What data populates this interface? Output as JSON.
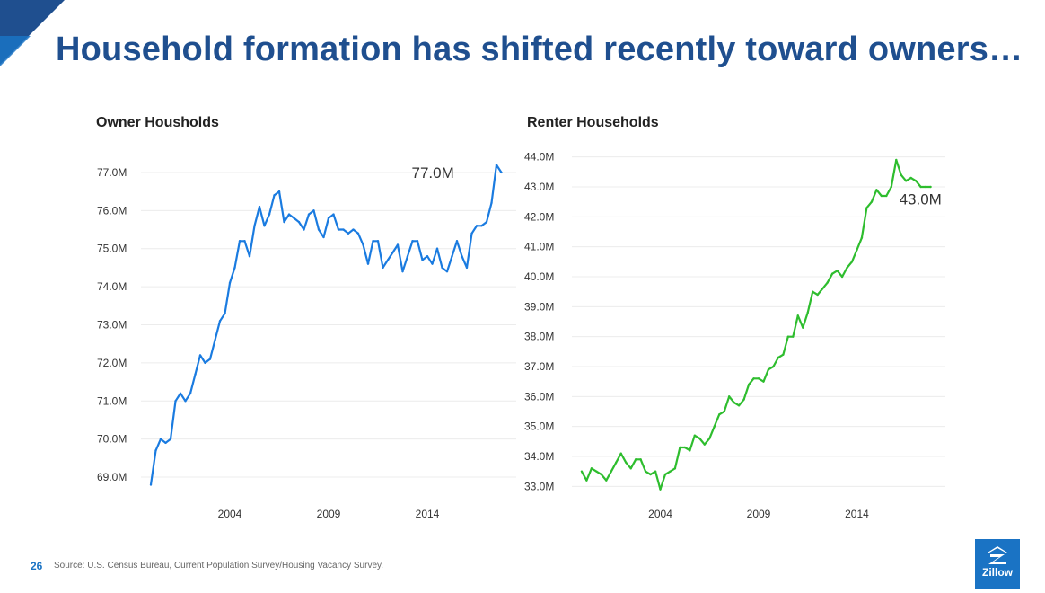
{
  "slide": {
    "title": "Household formation has shifted recently toward owners…",
    "page_number": "26",
    "source": "Source: U.S. Census Bureau, Current Population Survey/Housing Vacancy Survey.",
    "logo_text": "Zillow",
    "colors": {
      "title": "#1f4f8f",
      "accent": "#1a73c4",
      "owner_line": "#1a7be0",
      "renter_line": "#2ebd2e"
    }
  },
  "chart_data": [
    {
      "type": "line",
      "title": "Owner Housholds",
      "xlabel": "",
      "ylabel": "",
      "x_ticks": [
        "2004",
        "2009",
        "2014"
      ],
      "y_ticks": [
        "69.0M",
        "70.0M",
        "71.0M",
        "72.0M",
        "73.0M",
        "74.0M",
        "75.0M",
        "76.0M",
        "77.0M"
      ],
      "ylim": [
        68.6,
        77.4
      ],
      "xlim": [
        1999.5,
        2018.5
      ],
      "grid": true,
      "end_label": "77.0M",
      "series": [
        {
          "values": [
            [
              2000.0,
              68.8
            ],
            [
              2000.25,
              69.7
            ],
            [
              2000.5,
              70.0
            ],
            [
              2000.75,
              69.9
            ],
            [
              2001.0,
              70.0
            ],
            [
              2001.25,
              71.0
            ],
            [
              2001.5,
              71.2
            ],
            [
              2001.75,
              71.0
            ],
            [
              2002.0,
              71.2
            ],
            [
              2002.25,
              71.7
            ],
            [
              2002.5,
              72.2
            ],
            [
              2002.75,
              72.0
            ],
            [
              2003.0,
              72.1
            ],
            [
              2003.25,
              72.6
            ],
            [
              2003.5,
              73.1
            ],
            [
              2003.75,
              73.3
            ],
            [
              2004.0,
              74.1
            ],
            [
              2004.25,
              74.5
            ],
            [
              2004.5,
              75.2
            ],
            [
              2004.75,
              75.2
            ],
            [
              2005.0,
              74.8
            ],
            [
              2005.25,
              75.6
            ],
            [
              2005.5,
              76.1
            ],
            [
              2005.75,
              75.6
            ],
            [
              2006.0,
              75.9
            ],
            [
              2006.25,
              76.4
            ],
            [
              2006.5,
              76.5
            ],
            [
              2006.75,
              75.7
            ],
            [
              2007.0,
              75.9
            ],
            [
              2007.25,
              75.8
            ],
            [
              2007.5,
              75.7
            ],
            [
              2007.75,
              75.5
            ],
            [
              2008.0,
              75.9
            ],
            [
              2008.25,
              76.0
            ],
            [
              2008.5,
              75.5
            ],
            [
              2008.75,
              75.3
            ],
            [
              2009.0,
              75.8
            ],
            [
              2009.25,
              75.9
            ],
            [
              2009.5,
              75.5
            ],
            [
              2009.75,
              75.5
            ],
            [
              2010.0,
              75.4
            ],
            [
              2010.25,
              75.5
            ],
            [
              2010.5,
              75.4
            ],
            [
              2010.75,
              75.1
            ],
            [
              2011.0,
              74.6
            ],
            [
              2011.25,
              75.2
            ],
            [
              2011.5,
              75.2
            ],
            [
              2011.75,
              74.5
            ],
            [
              2012.0,
              74.7
            ],
            [
              2012.25,
              74.9
            ],
            [
              2012.5,
              75.1
            ],
            [
              2012.75,
              74.4
            ],
            [
              2013.0,
              74.8
            ],
            [
              2013.25,
              75.2
            ],
            [
              2013.5,
              75.2
            ],
            [
              2013.75,
              74.7
            ],
            [
              2014.0,
              74.8
            ],
            [
              2014.25,
              74.6
            ],
            [
              2014.5,
              75.0
            ],
            [
              2014.75,
              74.5
            ],
            [
              2015.0,
              74.4
            ],
            [
              2015.25,
              74.8
            ],
            [
              2015.5,
              75.2
            ],
            [
              2015.75,
              74.8
            ],
            [
              2016.0,
              74.5
            ],
            [
              2016.25,
              75.4
            ],
            [
              2016.5,
              75.6
            ],
            [
              2016.75,
              75.6
            ],
            [
              2017.0,
              75.7
            ],
            [
              2017.25,
              76.2
            ],
            [
              2017.5,
              77.2
            ],
            [
              2017.75,
              77.0
            ]
          ]
        }
      ]
    },
    {
      "type": "line",
      "title": "Renter Households",
      "xlabel": "",
      "ylabel": "",
      "x_ticks": [
        "2004",
        "2009",
        "2014"
      ],
      "y_ticks": [
        "33.0M",
        "34.0M",
        "35.0M",
        "36.0M",
        "37.0M",
        "38.0M",
        "39.0M",
        "40.0M",
        "41.0M",
        "42.0M",
        "43.0M",
        "44.0M"
      ],
      "ylim": [
        32.8,
        44.2
      ],
      "xlim": [
        1999.5,
        2018.5
      ],
      "grid": true,
      "end_label": "43.0M",
      "series": [
        {
          "values": [
            [
              2000.0,
              33.5
            ],
            [
              2000.25,
              33.2
            ],
            [
              2000.5,
              33.6
            ],
            [
              2000.75,
              33.5
            ],
            [
              2001.0,
              33.4
            ],
            [
              2001.25,
              33.2
            ],
            [
              2001.5,
              33.5
            ],
            [
              2001.75,
              33.8
            ],
            [
              2002.0,
              34.1
            ],
            [
              2002.25,
              33.8
            ],
            [
              2002.5,
              33.6
            ],
            [
              2002.75,
              33.9
            ],
            [
              2003.0,
              33.9
            ],
            [
              2003.25,
              33.5
            ],
            [
              2003.5,
              33.4
            ],
            [
              2003.75,
              33.5
            ],
            [
              2004.0,
              32.9
            ],
            [
              2004.25,
              33.4
            ],
            [
              2004.5,
              33.5
            ],
            [
              2004.75,
              33.6
            ],
            [
              2005.0,
              34.3
            ],
            [
              2005.25,
              34.3
            ],
            [
              2005.5,
              34.2
            ],
            [
              2005.75,
              34.7
            ],
            [
              2006.0,
              34.6
            ],
            [
              2006.25,
              34.4
            ],
            [
              2006.5,
              34.6
            ],
            [
              2006.75,
              35.0
            ],
            [
              2007.0,
              35.4
            ],
            [
              2007.25,
              35.5
            ],
            [
              2007.5,
              36.0
            ],
            [
              2007.75,
              35.8
            ],
            [
              2008.0,
              35.7
            ],
            [
              2008.25,
              35.9
            ],
            [
              2008.5,
              36.4
            ],
            [
              2008.75,
              36.6
            ],
            [
              2009.0,
              36.6
            ],
            [
              2009.25,
              36.5
            ],
            [
              2009.5,
              36.9
            ],
            [
              2009.75,
              37.0
            ],
            [
              2010.0,
              37.3
            ],
            [
              2010.25,
              37.4
            ],
            [
              2010.5,
              38.0
            ],
            [
              2010.75,
              38.0
            ],
            [
              2011.0,
              38.7
            ],
            [
              2011.25,
              38.3
            ],
            [
              2011.5,
              38.8
            ],
            [
              2011.75,
              39.5
            ],
            [
              2012.0,
              39.4
            ],
            [
              2012.25,
              39.6
            ],
            [
              2012.5,
              39.8
            ],
            [
              2012.75,
              40.1
            ],
            [
              2013.0,
              40.2
            ],
            [
              2013.25,
              40.0
            ],
            [
              2013.5,
              40.3
            ],
            [
              2013.75,
              40.5
            ],
            [
              2014.0,
              40.9
            ],
            [
              2014.25,
              41.3
            ],
            [
              2014.5,
              42.3
            ],
            [
              2014.75,
              42.5
            ],
            [
              2015.0,
              42.9
            ],
            [
              2015.25,
              42.7
            ],
            [
              2015.5,
              42.7
            ],
            [
              2015.75,
              43.0
            ],
            [
              2016.0,
              43.9
            ],
            [
              2016.25,
              43.4
            ],
            [
              2016.5,
              43.2
            ],
            [
              2016.75,
              43.3
            ],
            [
              2017.0,
              43.2
            ],
            [
              2017.25,
              43.0
            ],
            [
              2017.5,
              43.0
            ],
            [
              2017.75,
              43.0
            ]
          ]
        }
      ]
    }
  ]
}
